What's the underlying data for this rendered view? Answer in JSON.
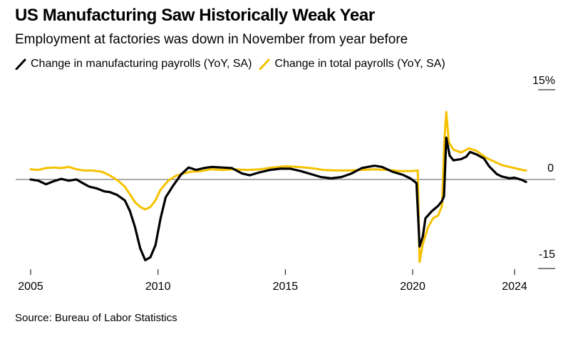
{
  "title": "US Manufacturing Saw Historically Weak Year",
  "subtitle": "Employment at factories was down in November from year before",
  "legend": [
    {
      "label": "Change in manufacturing payrolls (YoY, SA)",
      "color": "#000000"
    },
    {
      "label": "Change in total payrolls (YoY, SA)",
      "color": "#f5c100"
    }
  ],
  "source": "Source: Bureau of Labor Statistics",
  "chart_data": {
    "type": "line",
    "title": "US Manufacturing Saw Historically Weak Year",
    "xlabel": "",
    "ylabel": "",
    "xlim": [
      2005,
      2024.5
    ],
    "ylim": [
      -15,
      15
    ],
    "x_ticks": [
      "2005",
      "2010",
      "2015",
      "2020",
      "2024"
    ],
    "y_ticks": [
      "15%",
      "0",
      "-15"
    ],
    "zero_line": true,
    "series": [
      {
        "name": "Change in manufacturing payrolls (YoY, SA)",
        "color": "#000000",
        "points": [
          [
            2005.0,
            0.0
          ],
          [
            2005.3,
            -0.2
          ],
          [
            2005.6,
            -0.8
          ],
          [
            2005.9,
            -0.3
          ],
          [
            2006.2,
            0.1
          ],
          [
            2006.5,
            -0.2
          ],
          [
            2006.8,
            0.0
          ],
          [
            2007.0,
            -0.5
          ],
          [
            2007.3,
            -1.2
          ],
          [
            2007.6,
            -1.5
          ],
          [
            2007.9,
            -2.0
          ],
          [
            2008.1,
            -2.1
          ],
          [
            2008.4,
            -2.6
          ],
          [
            2008.7,
            -3.5
          ],
          [
            2008.9,
            -5.3
          ],
          [
            2009.1,
            -8.0
          ],
          [
            2009.3,
            -11.5
          ],
          [
            2009.5,
            -13.5
          ],
          [
            2009.7,
            -13.0
          ],
          [
            2009.9,
            -11.0
          ],
          [
            2010.1,
            -6.5
          ],
          [
            2010.3,
            -3.0
          ],
          [
            2010.6,
            -1.0
          ],
          [
            2010.9,
            0.8
          ],
          [
            2011.2,
            2.0
          ],
          [
            2011.5,
            1.6
          ],
          [
            2011.8,
            1.9
          ],
          [
            2012.1,
            2.1
          ],
          [
            2012.5,
            2.0
          ],
          [
            2012.9,
            1.9
          ],
          [
            2013.3,
            1.0
          ],
          [
            2013.6,
            0.7
          ],
          [
            2014.0,
            1.2
          ],
          [
            2014.4,
            1.6
          ],
          [
            2014.8,
            1.8
          ],
          [
            2015.2,
            1.8
          ],
          [
            2015.6,
            1.4
          ],
          [
            2016.0,
            0.9
          ],
          [
            2016.4,
            0.4
          ],
          [
            2016.8,
            0.2
          ],
          [
            2017.2,
            0.4
          ],
          [
            2017.6,
            1.0
          ],
          [
            2018.0,
            1.9
          ],
          [
            2018.5,
            2.3
          ],
          [
            2018.8,
            2.1
          ],
          [
            2019.2,
            1.3
          ],
          [
            2019.6,
            0.8
          ],
          [
            2019.9,
            0.2
          ],
          [
            2020.15,
            -0.6
          ],
          [
            2020.27,
            -11.2
          ],
          [
            2020.4,
            -9.5
          ],
          [
            2020.5,
            -6.5
          ],
          [
            2020.75,
            -5.3
          ],
          [
            2021.0,
            -4.4
          ],
          [
            2021.15,
            -3.6
          ],
          [
            2021.23,
            -2.8
          ],
          [
            2021.32,
            7.0
          ],
          [
            2021.45,
            4.0
          ],
          [
            2021.6,
            3.2
          ],
          [
            2021.9,
            3.4
          ],
          [
            2022.1,
            3.8
          ],
          [
            2022.25,
            4.6
          ],
          [
            2022.5,
            4.2
          ],
          [
            2022.8,
            3.5
          ],
          [
            2023.0,
            2.2
          ],
          [
            2023.3,
            0.9
          ],
          [
            2023.5,
            0.5
          ],
          [
            2023.8,
            0.2
          ],
          [
            2024.0,
            0.3
          ],
          [
            2024.3,
            -0.1
          ],
          [
            2024.45,
            -0.4
          ]
        ]
      },
      {
        "name": "Change in total payrolls (YoY, SA)",
        "color": "#f5c100",
        "points": [
          [
            2005.0,
            1.7
          ],
          [
            2005.3,
            1.6
          ],
          [
            2005.6,
            1.9
          ],
          [
            2005.9,
            2.0
          ],
          [
            2006.2,
            1.9
          ],
          [
            2006.5,
            2.1
          ],
          [
            2006.8,
            1.7
          ],
          [
            2007.1,
            1.5
          ],
          [
            2007.4,
            1.5
          ],
          [
            2007.8,
            1.3
          ],
          [
            2008.1,
            0.7
          ],
          [
            2008.4,
            -0.1
          ],
          [
            2008.7,
            -1.2
          ],
          [
            2008.9,
            -2.5
          ],
          [
            2009.1,
            -3.8
          ],
          [
            2009.3,
            -4.6
          ],
          [
            2009.5,
            -5.0
          ],
          [
            2009.7,
            -4.6
          ],
          [
            2009.9,
            -3.5
          ],
          [
            2010.1,
            -1.7
          ],
          [
            2010.4,
            -0.2
          ],
          [
            2010.7,
            0.6
          ],
          [
            2011.0,
            1.0
          ],
          [
            2011.3,
            1.3
          ],
          [
            2011.7,
            1.4
          ],
          [
            2012.1,
            1.7
          ],
          [
            2012.5,
            1.6
          ],
          [
            2013.0,
            1.7
          ],
          [
            2013.5,
            1.6
          ],
          [
            2014.0,
            1.7
          ],
          [
            2014.5,
            2.0
          ],
          [
            2015.0,
            2.2
          ],
          [
            2015.5,
            2.1
          ],
          [
            2016.0,
            1.9
          ],
          [
            2016.5,
            1.6
          ],
          [
            2017.0,
            1.5
          ],
          [
            2017.5,
            1.5
          ],
          [
            2018.0,
            1.6
          ],
          [
            2018.5,
            1.7
          ],
          [
            2019.0,
            1.6
          ],
          [
            2019.5,
            1.4
          ],
          [
            2019.9,
            1.4
          ],
          [
            2020.2,
            1.5
          ],
          [
            2020.27,
            -13.8
          ],
          [
            2020.4,
            -10.8
          ],
          [
            2020.6,
            -8.0
          ],
          [
            2020.8,
            -6.5
          ],
          [
            2021.0,
            -6.0
          ],
          [
            2021.15,
            -4.4
          ],
          [
            2021.25,
            7.0
          ],
          [
            2021.32,
            11.3
          ],
          [
            2021.42,
            6.2
          ],
          [
            2021.6,
            5.0
          ],
          [
            2021.9,
            4.5
          ],
          [
            2022.2,
            5.2
          ],
          [
            2022.5,
            4.8
          ],
          [
            2022.9,
            3.6
          ],
          [
            2023.2,
            3.0
          ],
          [
            2023.5,
            2.4
          ],
          [
            2023.8,
            2.1
          ],
          [
            2024.0,
            1.9
          ],
          [
            2024.3,
            1.6
          ],
          [
            2024.45,
            1.5
          ]
        ]
      }
    ]
  }
}
